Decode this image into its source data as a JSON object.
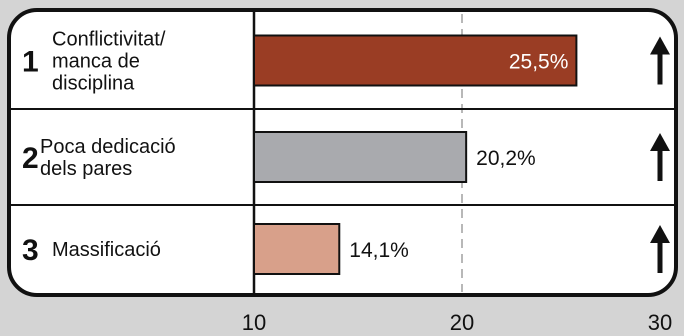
{
  "chart_data": {
    "type": "bar",
    "orientation": "horizontal",
    "categories": [
      {
        "rank": "1",
        "lines": [
          "Conflictivitat/",
          "manca de",
          "disciplina"
        ]
      },
      {
        "rank": "2",
        "lines": [
          "Poca dedicació",
          "dels pares"
        ]
      },
      {
        "rank": "3",
        "lines": [
          "Massificació"
        ]
      }
    ],
    "values": [
      25.5,
      20.2,
      14.1
    ],
    "value_labels": [
      "25,5%",
      "20,2%",
      "14,1%"
    ],
    "colors": [
      "#9a3d24",
      "#a9aaae",
      "#d8a08a"
    ],
    "trend": [
      "up",
      "up",
      "up"
    ],
    "xlim": [
      10,
      30
    ],
    "xticks": [
      "10",
      "20",
      "30"
    ],
    "gridlines": [
      20
    ]
  }
}
